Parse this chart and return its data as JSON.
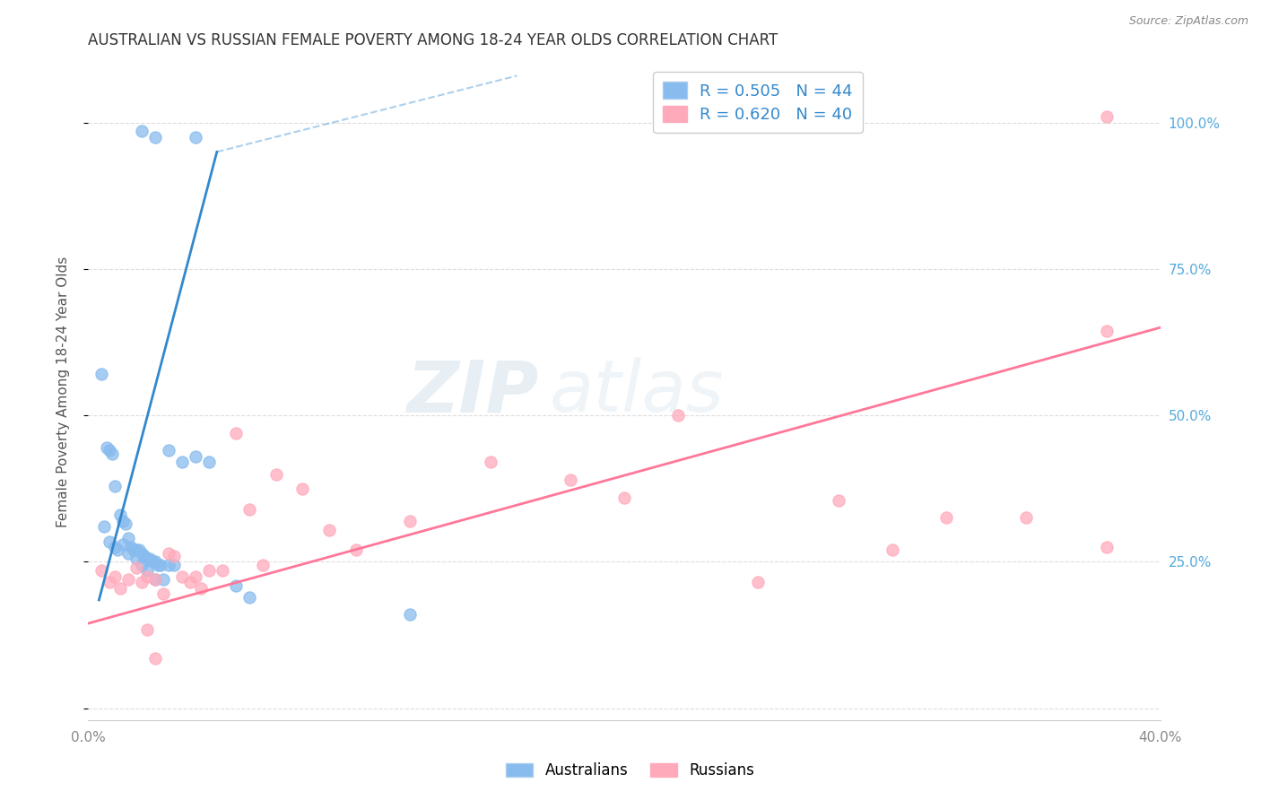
{
  "title": "AUSTRALIAN VS RUSSIAN FEMALE POVERTY AMONG 18-24 YEAR OLDS CORRELATION CHART",
  "source": "Source: ZipAtlas.com",
  "ylabel": "Female Poverty Among 18-24 Year Olds",
  "xlim": [
    0.0,
    0.4
  ],
  "ylim": [
    -0.02,
    1.1
  ],
  "yticks": [
    0.0,
    0.25,
    0.5,
    0.75,
    1.0
  ],
  "ytick_labels": [
    "",
    "25.0%",
    "50.0%",
    "75.0%",
    "100.0%"
  ],
  "xtick_labels": [
    "0.0%",
    "",
    "",
    "",
    "",
    "",
    "",
    "",
    "40.0%"
  ],
  "watermark_top": "ZIP",
  "watermark_bot": "atlas",
  "legend_R_aus": "R = 0.505",
  "legend_N_aus": "N = 44",
  "legend_R_rus": "R = 0.620",
  "legend_N_rus": "N = 40",
  "color_aus": "#88BBEE",
  "color_rus": "#FFAABB",
  "color_aus_line": "#3388CC",
  "color_rus_line": "#FF7799",
  "aus_line_x0": 0.004,
  "aus_line_y0": 0.185,
  "aus_line_x1": 0.048,
  "aus_line_y1": 0.95,
  "aus_line_ext_x0": 0.048,
  "aus_line_ext_y0": 0.95,
  "aus_line_ext_x1": 0.16,
  "aus_line_ext_y1": 1.08,
  "rus_line_x0": 0.0,
  "rus_line_y0": 0.145,
  "rus_line_x1": 0.4,
  "rus_line_y1": 0.65,
  "aus_scatter_x": [
    0.02,
    0.025,
    0.04,
    0.005,
    0.007,
    0.008,
    0.009,
    0.01,
    0.012,
    0.013,
    0.014,
    0.015,
    0.016,
    0.017,
    0.018,
    0.019,
    0.02,
    0.021,
    0.022,
    0.023,
    0.024,
    0.025,
    0.026,
    0.027,
    0.03,
    0.032,
    0.006,
    0.008,
    0.01,
    0.011,
    0.013,
    0.015,
    0.018,
    0.02,
    0.022,
    0.025,
    0.028,
    0.055,
    0.03,
    0.035,
    0.04,
    0.045,
    0.06,
    0.12
  ],
  "aus_scatter_y": [
    0.985,
    0.975,
    0.975,
    0.57,
    0.445,
    0.44,
    0.435,
    0.38,
    0.33,
    0.32,
    0.315,
    0.29,
    0.275,
    0.27,
    0.27,
    0.27,
    0.265,
    0.26,
    0.255,
    0.255,
    0.25,
    0.25,
    0.245,
    0.245,
    0.245,
    0.245,
    0.31,
    0.285,
    0.275,
    0.27,
    0.28,
    0.265,
    0.255,
    0.245,
    0.235,
    0.22,
    0.22,
    0.21,
    0.44,
    0.42,
    0.43,
    0.42,
    0.19,
    0.16
  ],
  "rus_scatter_x": [
    0.005,
    0.008,
    0.01,
    0.012,
    0.015,
    0.018,
    0.02,
    0.022,
    0.025,
    0.028,
    0.03,
    0.032,
    0.035,
    0.038,
    0.04,
    0.042,
    0.045,
    0.05,
    0.055,
    0.06,
    0.065,
    0.07,
    0.08,
    0.09,
    0.1,
    0.12,
    0.15,
    0.18,
    0.2,
    0.22,
    0.25,
    0.28,
    0.3,
    0.32,
    0.35,
    0.38,
    0.022,
    0.025,
    0.38,
    0.38
  ],
  "rus_scatter_y": [
    0.235,
    0.215,
    0.225,
    0.205,
    0.22,
    0.24,
    0.215,
    0.225,
    0.22,
    0.195,
    0.265,
    0.26,
    0.225,
    0.215,
    0.225,
    0.205,
    0.235,
    0.235,
    0.47,
    0.34,
    0.245,
    0.4,
    0.375,
    0.305,
    0.27,
    0.32,
    0.42,
    0.39,
    0.36,
    0.5,
    0.215,
    0.355,
    0.27,
    0.325,
    0.325,
    0.645,
    0.135,
    0.085,
    0.275,
    1.01
  ],
  "background_color": "#FFFFFF",
  "grid_color": "#DDDDDD",
  "grid_linestyle": "--"
}
